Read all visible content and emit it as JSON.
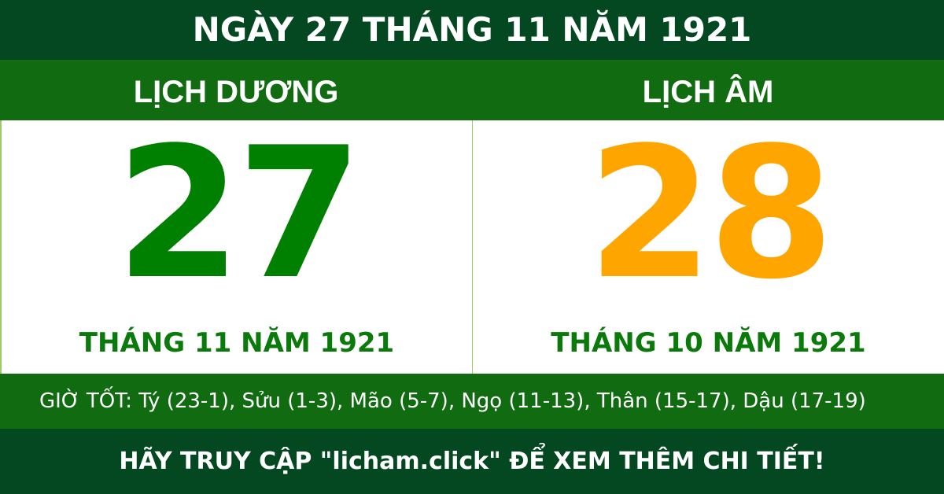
{
  "header": {
    "title": "NGÀY 27 THÁNG 11 NĂM 1921"
  },
  "solar": {
    "label": "LỊCH DƯƠNG",
    "day": "27",
    "month_year": "THÁNG 11 NĂM 1921",
    "color": "#008000"
  },
  "lunar": {
    "label": "LỊCH ÂM",
    "day": "28",
    "month_year": "THÁNG 10 NĂM 1921",
    "color": "#FFA500"
  },
  "good_hours": "GIỜ TỐT: Tý (23-1), Sửu (1-3), Mão (5-7), Ngọ (11-13), Thân (15-17), Dậu (17-19)",
  "footer": {
    "cta": "HÃY TRUY CẬP \"licham.click\" ĐỂ XEM THÊM CHI TIẾT!"
  },
  "colors": {
    "dark_green": "#034820",
    "band_green": "#116b11"
  }
}
